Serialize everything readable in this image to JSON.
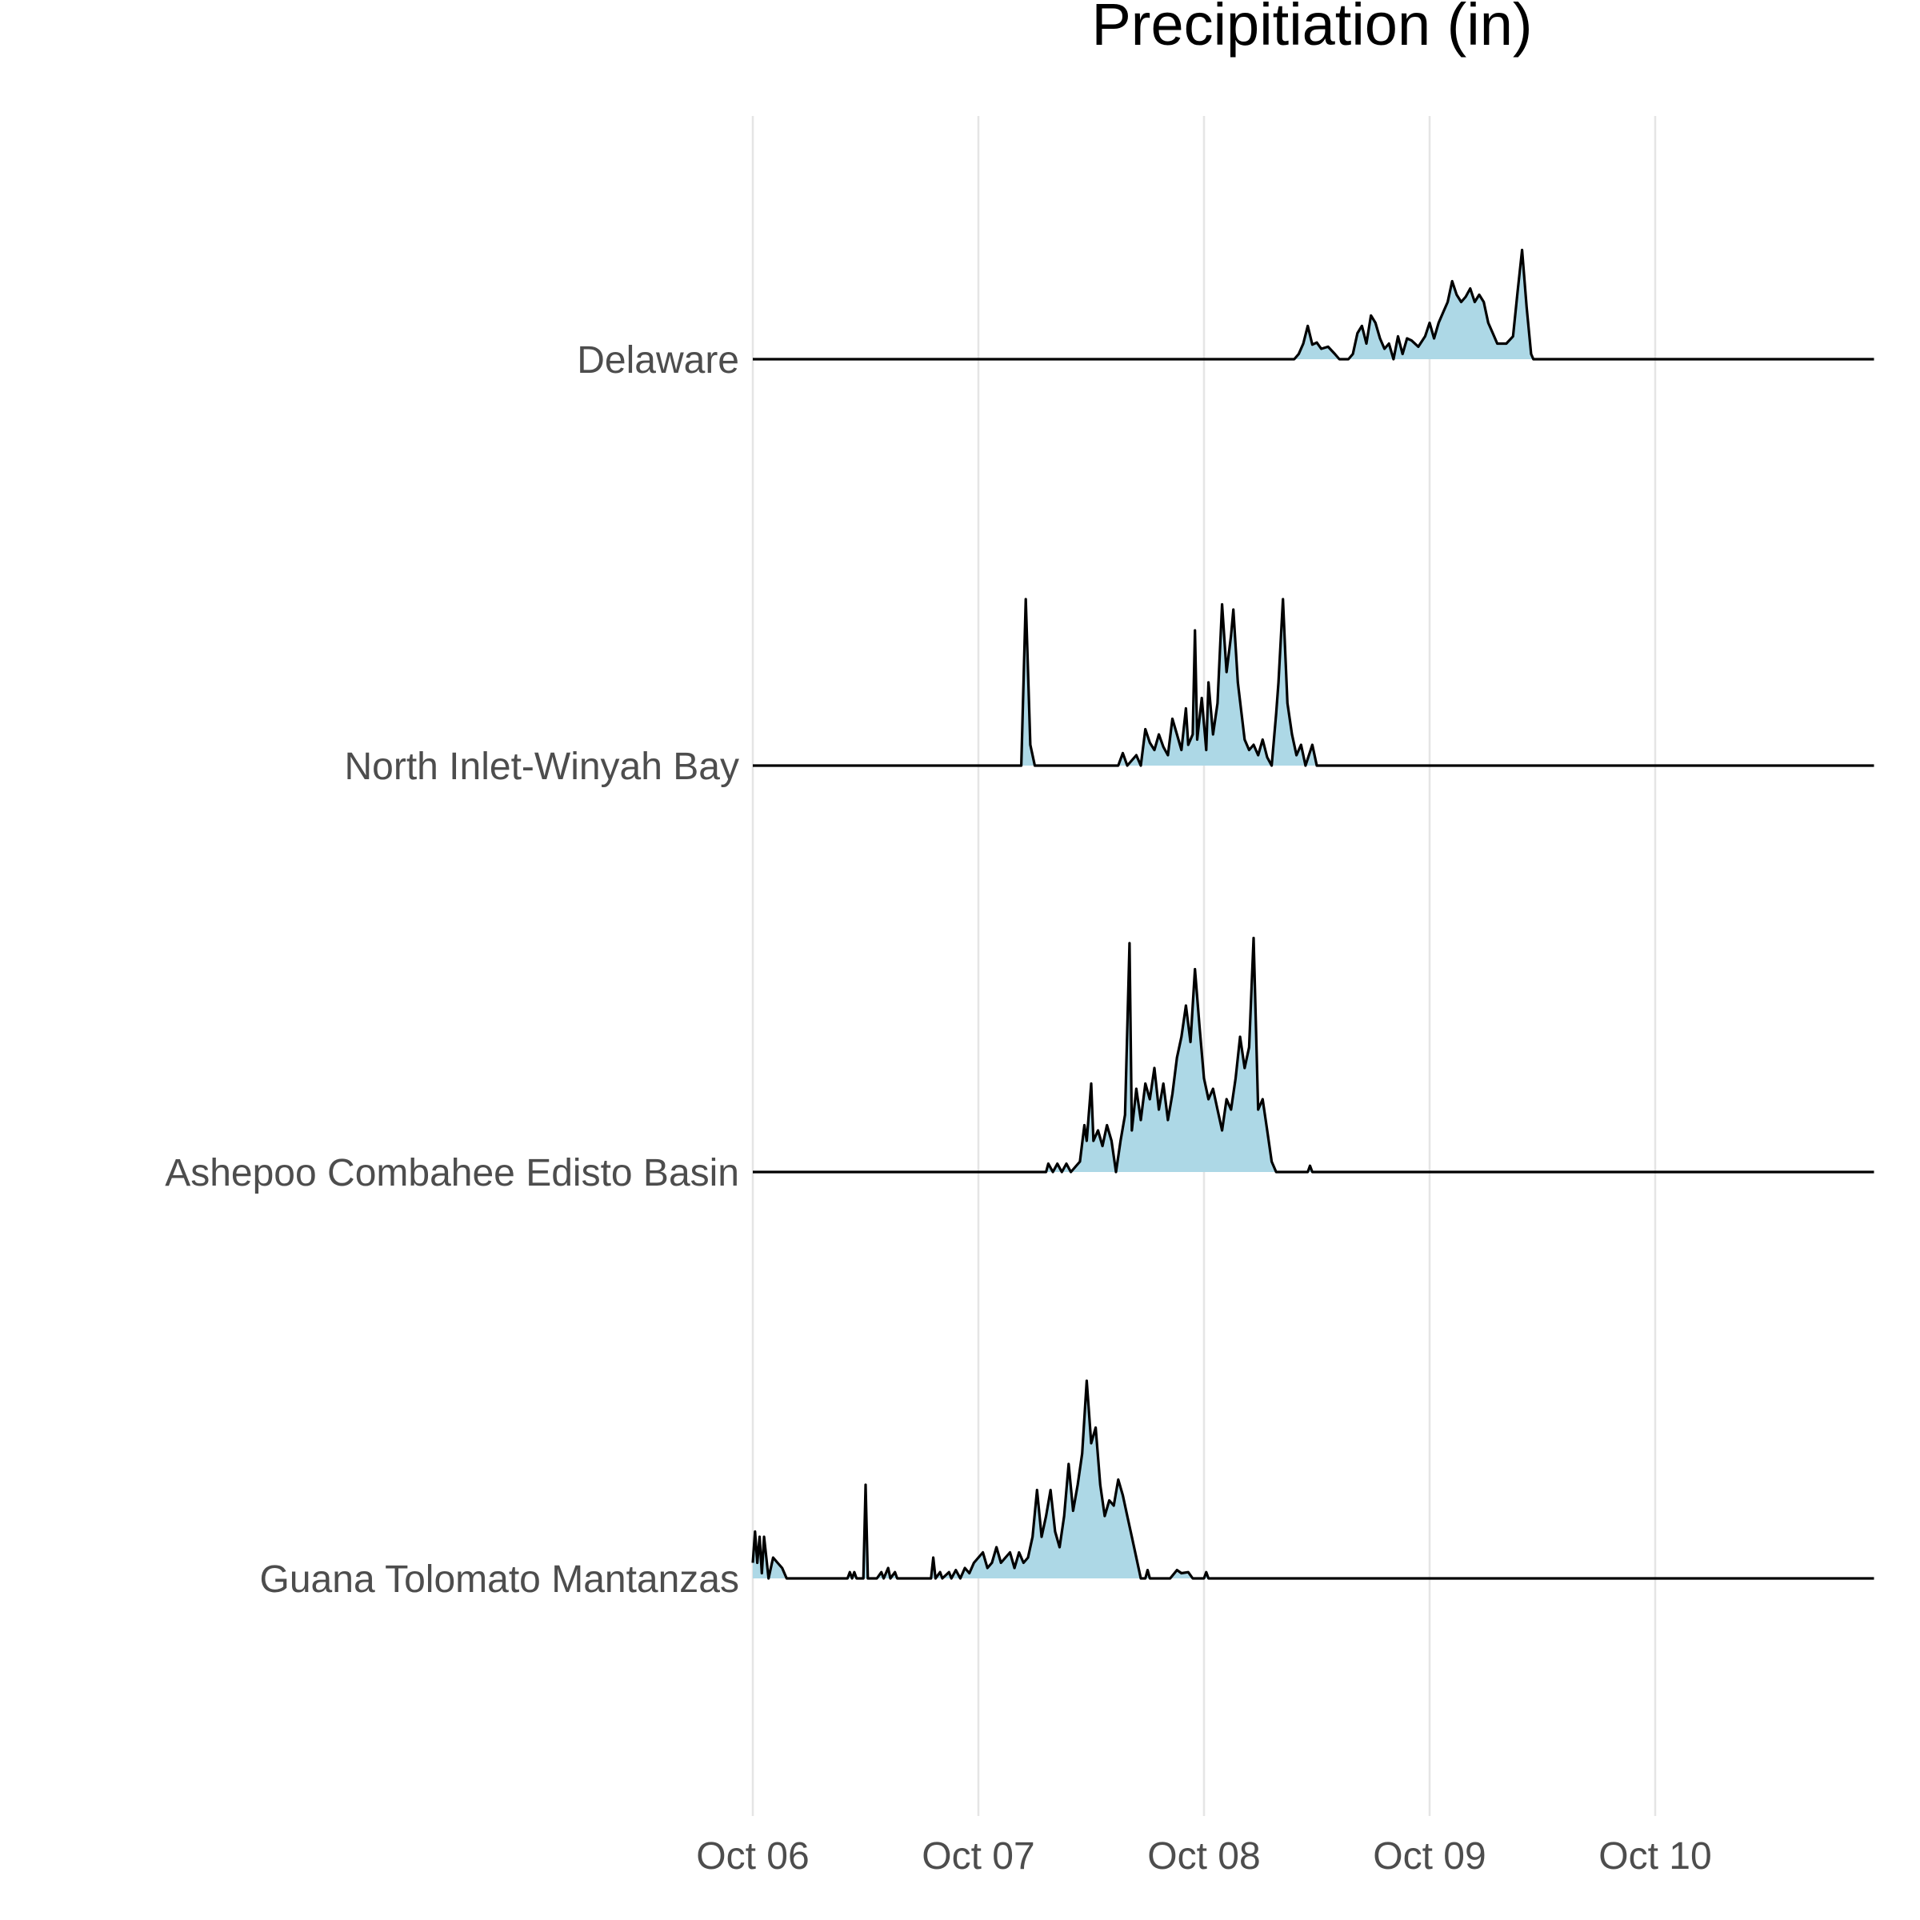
{
  "chart_data": {
    "type": "area",
    "subtype": "ridgeline",
    "title": "Precipitiation (in)",
    "xlabel": "",
    "ylabel": "",
    "x_ticks": [
      "Oct 06",
      "Oct 07",
      "Oct 08",
      "Oct 09",
      "Oct 10"
    ],
    "xlim": [
      0,
      4.97
    ],
    "x_unit": "days (date axis)",
    "grid": {
      "vertical_major": true,
      "horizontal": false
    },
    "fill_color": "#add8e6",
    "line_color": "#000000",
    "legend": "none",
    "series": [
      {
        "name": "Delaware",
        "points": [
          [
            0,
            0
          ],
          [
            2.4,
            0
          ],
          [
            2.42,
            0.05
          ],
          [
            2.44,
            0.15
          ],
          [
            2.46,
            0.32
          ],
          [
            2.48,
            0.14
          ],
          [
            2.5,
            0.16
          ],
          [
            2.52,
            0.1
          ],
          [
            2.55,
            0.12
          ],
          [
            2.58,
            0.05
          ],
          [
            2.6,
            0
          ],
          [
            2.64,
            0
          ],
          [
            2.66,
            0.05
          ],
          [
            2.68,
            0.25
          ],
          [
            2.7,
            0.32
          ],
          [
            2.72,
            0.15
          ],
          [
            2.74,
            0.42
          ],
          [
            2.76,
            0.35
          ],
          [
            2.78,
            0.2
          ],
          [
            2.8,
            0.1
          ],
          [
            2.82,
            0.15
          ],
          [
            2.84,
            0
          ],
          [
            2.86,
            0.22
          ],
          [
            2.88,
            0.05
          ],
          [
            2.9,
            0.2
          ],
          [
            2.92,
            0.18
          ],
          [
            2.95,
            0.12
          ],
          [
            2.98,
            0.22
          ],
          [
            3.0,
            0.35
          ],
          [
            3.02,
            0.2
          ],
          [
            3.04,
            0.35
          ],
          [
            3.06,
            0.45
          ],
          [
            3.08,
            0.55
          ],
          [
            3.1,
            0.75
          ],
          [
            3.12,
            0.62
          ],
          [
            3.14,
            0.55
          ],
          [
            3.16,
            0.6
          ],
          [
            3.18,
            0.68
          ],
          [
            3.2,
            0.55
          ],
          [
            3.22,
            0.62
          ],
          [
            3.24,
            0.55
          ],
          [
            3.26,
            0.35
          ],
          [
            3.28,
            0.25
          ],
          [
            3.3,
            0.15
          ],
          [
            3.34,
            0.15
          ],
          [
            3.37,
            0.22
          ],
          [
            3.39,
            0.65
          ],
          [
            3.41,
            1.05
          ],
          [
            3.43,
            0.5
          ],
          [
            3.45,
            0.05
          ],
          [
            3.46,
            0
          ],
          [
            4.97,
            0
          ]
        ]
      },
      {
        "name": "North Inlet-Winyah Bay",
        "points": [
          [
            0,
            0
          ],
          [
            1.19,
            0
          ],
          [
            1.21,
            1.6
          ],
          [
            1.23,
            0.2
          ],
          [
            1.25,
            0
          ],
          [
            1.62,
            0
          ],
          [
            1.64,
            0.12
          ],
          [
            1.66,
            0
          ],
          [
            1.7,
            0.1
          ],
          [
            1.72,
            0
          ],
          [
            1.74,
            0.35
          ],
          [
            1.76,
            0.22
          ],
          [
            1.78,
            0.15
          ],
          [
            1.8,
            0.3
          ],
          [
            1.82,
            0.18
          ],
          [
            1.84,
            0.1
          ],
          [
            1.86,
            0.45
          ],
          [
            1.88,
            0.3
          ],
          [
            1.9,
            0.15
          ],
          [
            1.92,
            0.55
          ],
          [
            1.93,
            0.2
          ],
          [
            1.95,
            0.3
          ],
          [
            1.96,
            1.3
          ],
          [
            1.97,
            0.25
          ],
          [
            1.99,
            0.65
          ],
          [
            2.01,
            0.15
          ],
          [
            2.02,
            0.8
          ],
          [
            2.04,
            0.3
          ],
          [
            2.06,
            0.6
          ],
          [
            2.08,
            1.55
          ],
          [
            2.1,
            0.9
          ],
          [
            2.12,
            1.25
          ],
          [
            2.13,
            1.5
          ],
          [
            2.15,
            0.8
          ],
          [
            2.18,
            0.25
          ],
          [
            2.2,
            0.15
          ],
          [
            2.22,
            0.2
          ],
          [
            2.24,
            0.1
          ],
          [
            2.26,
            0.25
          ],
          [
            2.28,
            0.08
          ],
          [
            2.3,
            0
          ],
          [
            2.32,
            0.5
          ],
          [
            2.33,
            0.8
          ],
          [
            2.35,
            1.6
          ],
          [
            2.37,
            0.6
          ],
          [
            2.39,
            0.3
          ],
          [
            2.41,
            0.1
          ],
          [
            2.43,
            0.2
          ],
          [
            2.45,
            0
          ],
          [
            2.48,
            0.2
          ],
          [
            2.5,
            0
          ],
          [
            4.97,
            0
          ]
        ]
      },
      {
        "name": "Ashepoo Combahee Edisto Basin",
        "points": [
          [
            0,
            0
          ],
          [
            1.3,
            0
          ],
          [
            1.31,
            0.08
          ],
          [
            1.33,
            0
          ],
          [
            1.35,
            0.08
          ],
          [
            1.37,
            0
          ],
          [
            1.39,
            0.08
          ],
          [
            1.41,
            0
          ],
          [
            1.45,
            0.1
          ],
          [
            1.47,
            0.45
          ],
          [
            1.48,
            0.3
          ],
          [
            1.5,
            0.85
          ],
          [
            1.51,
            0.3
          ],
          [
            1.53,
            0.4
          ],
          [
            1.55,
            0.25
          ],
          [
            1.57,
            0.45
          ],
          [
            1.59,
            0.3
          ],
          [
            1.61,
            0
          ],
          [
            1.63,
            0.3
          ],
          [
            1.65,
            0.55
          ],
          [
            1.67,
            2.2
          ],
          [
            1.68,
            0.4
          ],
          [
            1.7,
            0.8
          ],
          [
            1.72,
            0.5
          ],
          [
            1.74,
            0.85
          ],
          [
            1.76,
            0.7
          ],
          [
            1.78,
            1.0
          ],
          [
            1.8,
            0.6
          ],
          [
            1.82,
            0.85
          ],
          [
            1.84,
            0.5
          ],
          [
            1.86,
            0.75
          ],
          [
            1.88,
            1.1
          ],
          [
            1.9,
            1.3
          ],
          [
            1.92,
            1.6
          ],
          [
            1.94,
            1.25
          ],
          [
            1.96,
            1.95
          ],
          [
            1.98,
            1.4
          ],
          [
            2.0,
            0.9
          ],
          [
            2.02,
            0.7
          ],
          [
            2.04,
            0.8
          ],
          [
            2.06,
            0.6
          ],
          [
            2.08,
            0.4
          ],
          [
            2.1,
            0.7
          ],
          [
            2.12,
            0.6
          ],
          [
            2.14,
            0.9
          ],
          [
            2.16,
            1.3
          ],
          [
            2.18,
            1.0
          ],
          [
            2.2,
            1.2
          ],
          [
            2.22,
            2.25
          ],
          [
            2.24,
            0.6
          ],
          [
            2.26,
            0.7
          ],
          [
            2.28,
            0.4
          ],
          [
            2.3,
            0.1
          ],
          [
            2.32,
            0
          ],
          [
            2.46,
            0
          ],
          [
            2.47,
            0.06
          ],
          [
            2.48,
            0
          ],
          [
            4.97,
            0
          ]
        ]
      },
      {
        "name": "Guana Tolomato Mantanzas",
        "points": [
          [
            0,
            0.15
          ],
          [
            0.01,
            0.45
          ],
          [
            0.02,
            0.15
          ],
          [
            0.03,
            0.4
          ],
          [
            0.04,
            0.05
          ],
          [
            0.05,
            0.4
          ],
          [
            0.07,
            0
          ],
          [
            0.09,
            0.2
          ],
          [
            0.11,
            0.15
          ],
          [
            0.13,
            0.1
          ],
          [
            0.15,
            0
          ],
          [
            0.42,
            0
          ],
          [
            0.43,
            0.06
          ],
          [
            0.44,
            0
          ],
          [
            0.45,
            0.06
          ],
          [
            0.46,
            0
          ],
          [
            0.49,
            0
          ],
          [
            0.5,
            0.9
          ],
          [
            0.51,
            0
          ],
          [
            0.55,
            0
          ],
          [
            0.57,
            0.06
          ],
          [
            0.58,
            0
          ],
          [
            0.6,
            0.1
          ],
          [
            0.61,
            0
          ],
          [
            0.63,
            0.06
          ],
          [
            0.64,
            0
          ],
          [
            0.79,
            0
          ],
          [
            0.8,
            0.2
          ],
          [
            0.81,
            0
          ],
          [
            0.83,
            0.06
          ],
          [
            0.84,
            0
          ],
          [
            0.87,
            0.06
          ],
          [
            0.88,
            0
          ],
          [
            0.9,
            0.08
          ],
          [
            0.92,
            0
          ],
          [
            0.94,
            0.1
          ],
          [
            0.96,
            0.05
          ],
          [
            0.98,
            0.15
          ],
          [
            1.0,
            0.2
          ],
          [
            1.02,
            0.25
          ],
          [
            1.04,
            0.1
          ],
          [
            1.06,
            0.15
          ],
          [
            1.08,
            0.3
          ],
          [
            1.1,
            0.15
          ],
          [
            1.12,
            0.2
          ],
          [
            1.14,
            0.25
          ],
          [
            1.16,
            0.1
          ],
          [
            1.18,
            0.25
          ],
          [
            1.2,
            0.15
          ],
          [
            1.22,
            0.2
          ],
          [
            1.24,
            0.4
          ],
          [
            1.26,
            0.85
          ],
          [
            1.28,
            0.4
          ],
          [
            1.3,
            0.6
          ],
          [
            1.32,
            0.85
          ],
          [
            1.34,
            0.45
          ],
          [
            1.36,
            0.3
          ],
          [
            1.38,
            0.6
          ],
          [
            1.4,
            1.1
          ],
          [
            1.42,
            0.65
          ],
          [
            1.44,
            0.9
          ],
          [
            1.46,
            1.2
          ],
          [
            1.48,
            1.9
          ],
          [
            1.5,
            1.3
          ],
          [
            1.52,
            1.45
          ],
          [
            1.54,
            0.9
          ],
          [
            1.56,
            0.6
          ],
          [
            1.58,
            0.75
          ],
          [
            1.6,
            0.7
          ],
          [
            1.62,
            0.95
          ],
          [
            1.64,
            0.8
          ],
          [
            1.66,
            0.6
          ],
          [
            1.68,
            0.4
          ],
          [
            1.7,
            0.2
          ],
          [
            1.72,
            0
          ],
          [
            1.74,
            0
          ],
          [
            1.75,
            0.08
          ],
          [
            1.76,
            0
          ],
          [
            1.85,
            0
          ],
          [
            1.88,
            0.08
          ],
          [
            1.9,
            0.05
          ],
          [
            1.93,
            0.06
          ],
          [
            1.95,
            0
          ],
          [
            2.0,
            0
          ],
          [
            2.01,
            0.06
          ],
          [
            2.02,
            0
          ],
          [
            4.97,
            0
          ]
        ]
      }
    ]
  }
}
